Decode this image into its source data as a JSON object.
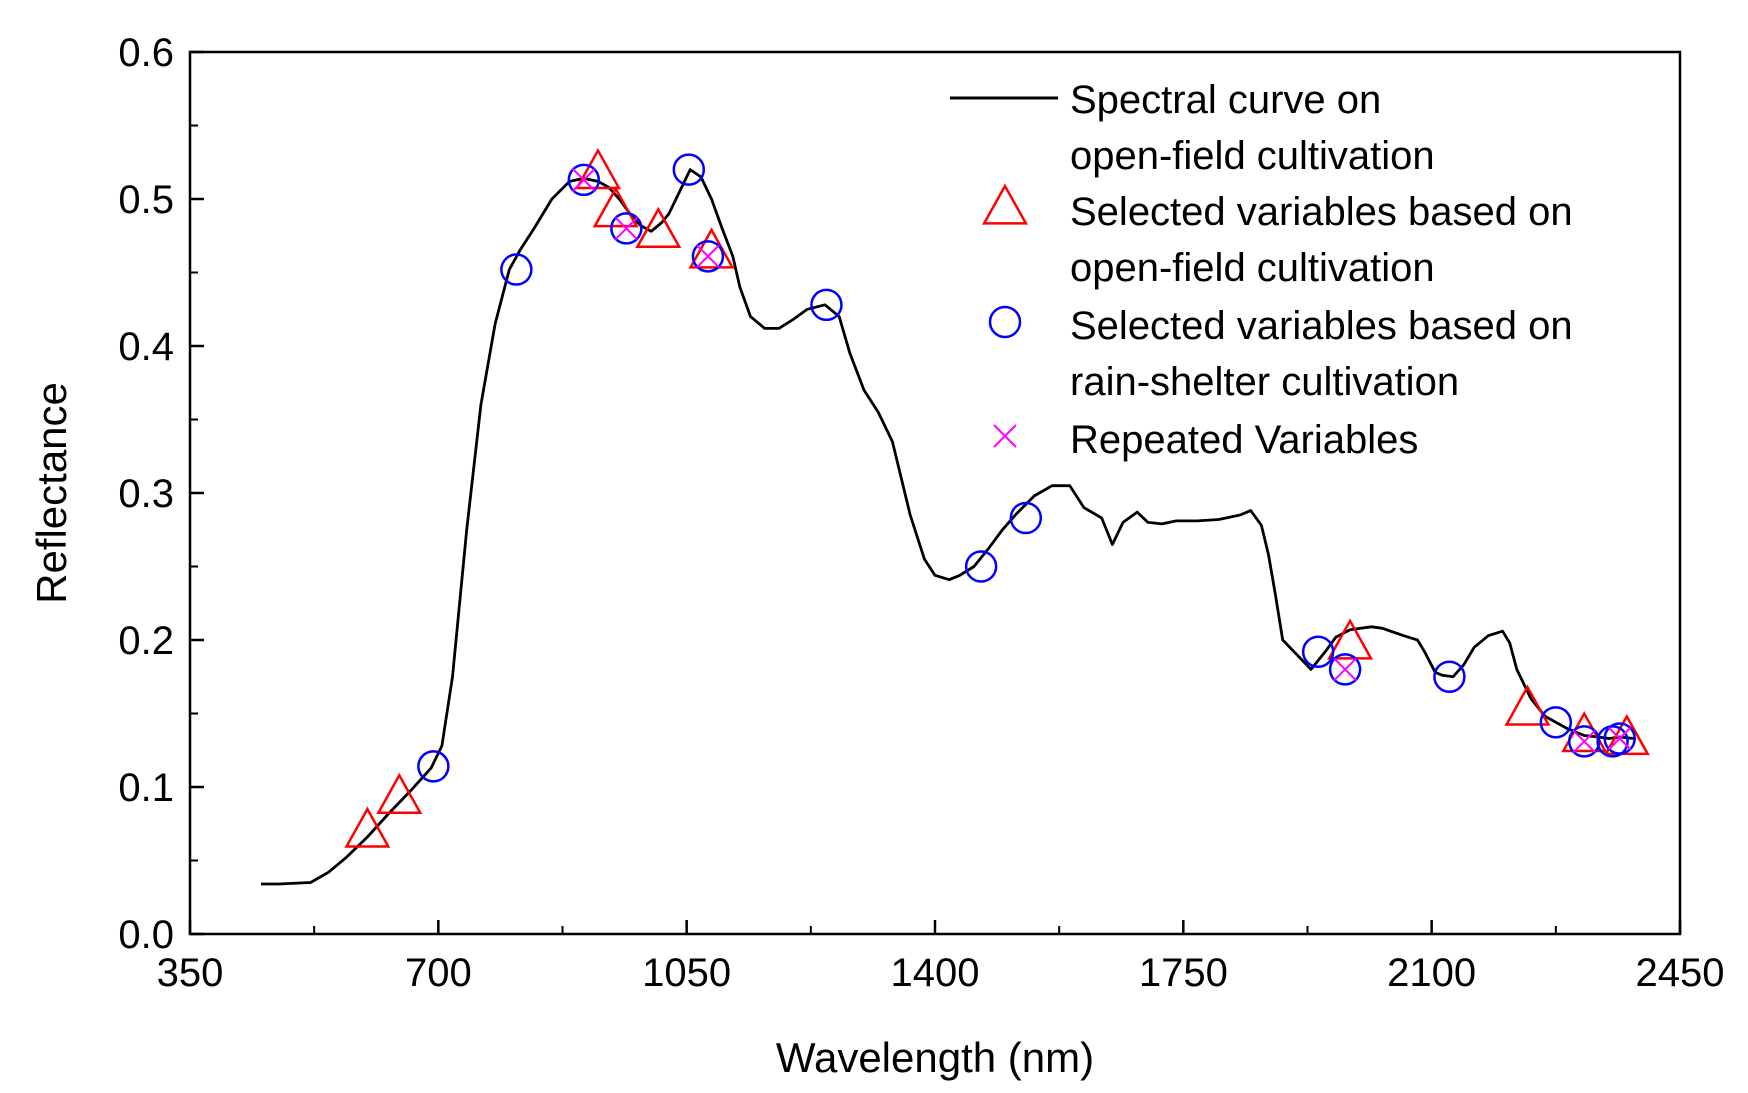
{
  "chart_data": {
    "type": "line",
    "xlabel": "Wavelength (nm)",
    "ylabel": "Reflectance",
    "xlim": [
      350,
      2450
    ],
    "ylim": [
      0.0,
      0.6
    ],
    "x_ticks": [
      350,
      700,
      1050,
      1400,
      1750,
      2100,
      2450
    ],
    "x_tick_labels": [
      "350",
      "700",
      "1050",
      "1400",
      "1750",
      "2100",
      "2450"
    ],
    "y_ticks": [
      0.0,
      0.1,
      0.2,
      0.3,
      0.4,
      0.5,
      0.6
    ],
    "y_tick_labels": [
      "0.0",
      "0.1",
      "0.2",
      "0.3",
      "0.4",
      "0.5",
      "0.6"
    ],
    "grid": false,
    "legend_position": "top-right",
    "series": [
      {
        "name": "Spectral curve on open-field cultivation",
        "legend_lines": [
          "Spectral curve on",
          "open-field cultivation"
        ],
        "kind": "line",
        "color": "#000000",
        "x": [
          450,
          475,
          520,
          545,
          570,
          600,
          630,
          660,
          690,
          705,
          720,
          740,
          760,
          780,
          800,
          815,
          835,
          860,
          885,
          905,
          925,
          940,
          955,
          970,
          985,
          1000,
          1015,
          1025,
          1040,
          1055,
          1070,
          1085,
          1100,
          1115,
          1125,
          1140,
          1160,
          1180,
          1200,
          1220,
          1245,
          1265,
          1280,
          1300,
          1320,
          1340,
          1365,
          1385,
          1400,
          1420,
          1435,
          1455,
          1475,
          1495,
          1515,
          1540,
          1565,
          1590,
          1610,
          1635,
          1650,
          1665,
          1685,
          1700,
          1720,
          1740,
          1770,
          1800,
          1830,
          1845,
          1860,
          1870,
          1880,
          1890,
          1910,
          1930,
          1950,
          1965,
          1985,
          2000,
          2015,
          2030,
          2060,
          2080,
          2090,
          2105,
          2115,
          2130,
          2145,
          2160,
          2180,
          2200,
          2210,
          2220,
          2240,
          2260,
          2290,
          2315,
          2335,
          2350,
          2365,
          2385
        ],
        "y": [
          0.034,
          0.034,
          0.035,
          0.042,
          0.052,
          0.066,
          0.082,
          0.097,
          0.113,
          0.128,
          0.175,
          0.275,
          0.36,
          0.415,
          0.452,
          0.465,
          0.48,
          0.5,
          0.512,
          0.514,
          0.512,
          0.508,
          0.5,
          0.49,
          0.482,
          0.478,
          0.484,
          0.49,
          0.505,
          0.52,
          0.515,
          0.5,
          0.48,
          0.461,
          0.44,
          0.42,
          0.412,
          0.412,
          0.418,
          0.425,
          0.428,
          0.42,
          0.395,
          0.37,
          0.355,
          0.335,
          0.285,
          0.255,
          0.244,
          0.241,
          0.244,
          0.25,
          0.262,
          0.275,
          0.286,
          0.298,
          0.305,
          0.305,
          0.29,
          0.283,
          0.265,
          0.28,
          0.287,
          0.28,
          0.279,
          0.281,
          0.281,
          0.282,
          0.285,
          0.288,
          0.278,
          0.258,
          0.23,
          0.2,
          0.19,
          0.18,
          0.192,
          0.202,
          0.207,
          0.208,
          0.209,
          0.208,
          0.203,
          0.2,
          0.192,
          0.178,
          0.176,
          0.175,
          0.183,
          0.195,
          0.203,
          0.206,
          0.198,
          0.18,
          0.16,
          0.148,
          0.14,
          0.135,
          0.134,
          0.133,
          0.134,
          0.133
        ]
      },
      {
        "name": "Selected variables based on open-field cultivation",
        "legend_lines": [
          "Selected variables based on",
          "open-field cultivation"
        ],
        "kind": "scatter",
        "marker": "triangle",
        "color": "#ff0000",
        "x": [
          600,
          645,
          925,
          950,
          1010,
          1085,
          1985,
          2235,
          2315,
          2375
        ],
        "y": [
          0.07,
          0.093,
          0.518,
          0.492,
          0.478,
          0.464,
          0.198,
          0.153,
          0.135,
          0.133
        ]
      },
      {
        "name": "Selected variables based on rain-shelter cultivation",
        "legend_lines": [
          "Selected variables based on",
          "rain-shelter cultivation"
        ],
        "kind": "scatter",
        "marker": "circle",
        "color": "#0000ff",
        "x": [
          693,
          810,
          905,
          965,
          1053,
          1080,
          1247,
          1465,
          1528,
          1940,
          1978,
          2125,
          2275,
          2315,
          2355,
          2365
        ],
        "y": [
          0.114,
          0.452,
          0.513,
          0.48,
          0.52,
          0.461,
          0.428,
          0.25,
          0.283,
          0.192,
          0.18,
          0.175,
          0.144,
          0.131,
          0.131,
          0.133
        ]
      },
      {
        "name": "Repeated Variables",
        "legend_lines": [
          "Repeated Variables"
        ],
        "kind": "scatter",
        "marker": "x",
        "color": "#ff00ff",
        "x": [
          905,
          965,
          1080,
          1978,
          2315,
          2365
        ],
        "y": [
          0.513,
          0.48,
          0.461,
          0.18,
          0.131,
          0.133
        ]
      }
    ]
  }
}
